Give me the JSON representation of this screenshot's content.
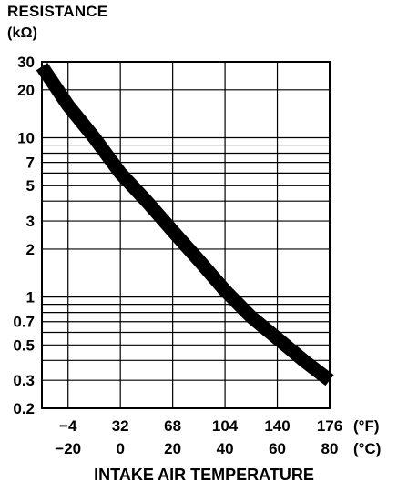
{
  "chart_data": {
    "type": "line",
    "ylabel": [
      "RESISTANCE",
      "(kΩ)"
    ],
    "xlabel": "INTAKE AIR TEMPERATURE",
    "y_scale": "log",
    "ylim": [
      0.2,
      30
    ],
    "xlim": [
      -30,
      80
    ],
    "y_ticks": [
      30,
      20,
      10,
      7,
      5,
      3,
      2,
      1,
      0.7,
      0.5,
      0.3,
      0.2
    ],
    "y_gridlines": [
      0.2,
      0.3,
      0.4,
      0.5,
      0.6,
      0.7,
      0.8,
      0.9,
      1,
      2,
      3,
      4,
      5,
      6,
      7,
      8,
      9,
      10,
      20,
      30
    ],
    "x_ticks_f": [
      "−4",
      "32",
      "68",
      "104",
      "140",
      "176"
    ],
    "x_ticks_c": [
      "−20",
      "0",
      "20",
      "40",
      "60",
      "80"
    ],
    "x_ticks_c_values": [
      -20,
      0,
      20,
      40,
      60,
      80
    ],
    "unit_f": "(°F)",
    "unit_c": "(°C)",
    "grid": true,
    "series": [
      {
        "x": [
          -30,
          -20,
          -10,
          0,
          10,
          20,
          30,
          40,
          50,
          60,
          70,
          80
        ],
        "values": [
          28,
          16,
          10,
          6,
          4,
          2.6,
          1.7,
          1.1,
          0.75,
          0.55,
          0.4,
          0.3
        ]
      }
    ]
  }
}
